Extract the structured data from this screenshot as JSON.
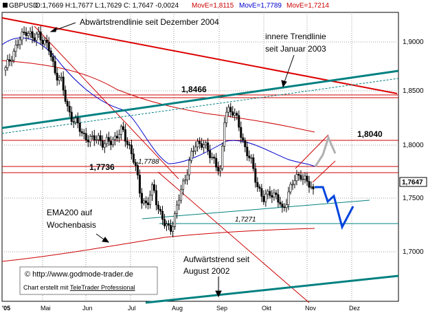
{
  "header": {
    "symbol": "GBPUSD",
    "ohlc": " O:1,7669 H:1,7677 L:1,7629 C: 1,7647 -0,0024",
    "ma1": "MovE=1,8115",
    "ma2": "MovE=1,7789",
    "ma3": "MovE=1,7214"
  },
  "colors": {
    "candle_up": "#ffffff",
    "candle_down": "#000000",
    "trend_down": "#dd0000",
    "trend_up": "#008080",
    "ema_short": "#0000cc",
    "ema_mid": "#cc0000",
    "ema_long": "#cc0000",
    "forecast_blue": "#0044dd",
    "forecast_gray": "#b0b0b0"
  },
  "annotations": {
    "downtrend": "Abwärtstrendlinie seit  Dezember 2004",
    "inner_trend_1": "innere Trendlinie",
    "inner_trend_2": "seit Januar 2003",
    "level_18466": "1,8466",
    "level_18040": "1,8040",
    "level_17736": "1,7736",
    "level_17788": "1,7788",
    "level_17271": "1,7271",
    "ema200_1": "EMA200 auf",
    "ema200_2": "Wochenbasis",
    "uptrend_1": "Aufwärtstrend seit",
    "uptrend_2": "August 2002",
    "copyright": "© http://www.godmode-trader.de",
    "credit_prefix": "Chart erstellt mit ",
    "credit_link": "TeleTrader Professional",
    "last_price": "1,7647"
  },
  "chart_data": {
    "type": "candlestick",
    "ylim": [
      1.66,
      1.935
    ],
    "yticks": [
      "1,9000",
      "1,8500",
      "1,8000",
      "1,7500",
      "1,7000"
    ],
    "ytick_values": [
      1.9,
      1.85,
      1.8,
      1.75,
      1.7
    ],
    "xticks": [
      "'05",
      "Mai",
      "Jun",
      "Jul",
      "Aug",
      "Sep",
      "Okt",
      "Nov",
      "Dez"
    ],
    "horizontal_levels": [
      1.8466,
      1.8441,
      1.804,
      1.7788,
      1.7736,
      1.7271
    ],
    "last_close": 1.7647
  }
}
